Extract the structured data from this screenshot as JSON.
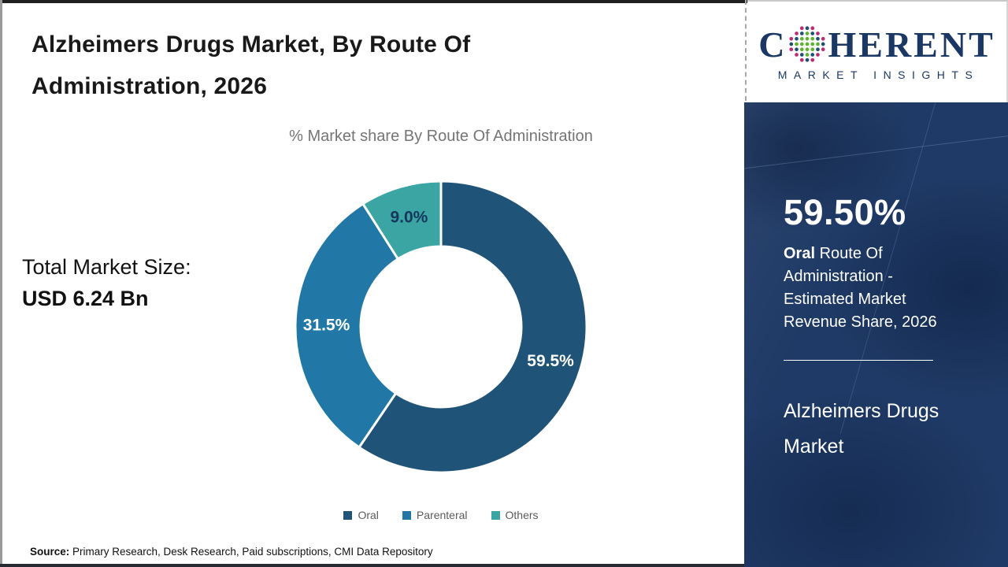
{
  "header": {
    "title_line1": "Alzheimers Drugs Market, By Route Of",
    "title_line2": "Administration, 2026"
  },
  "logo": {
    "brand_first": "C",
    "brand_rest": "HERENT",
    "tagline": "MARKET INSIGHTS",
    "brand_color": "#1b3764",
    "globe_icon": "dotted-globe"
  },
  "chart_data": {
    "type": "pie",
    "subtype": "donut",
    "title": "% Market share By Route Of Administration",
    "categories": [
      "Oral",
      "Parenteral",
      "Others"
    ],
    "values": [
      59.5,
      31.5,
      9.0
    ],
    "unit": "%",
    "colors": [
      "#1f5377",
      "#2178a6",
      "#3ba5a3"
    ],
    "label_colors": [
      "#ffffff",
      "#ffffff",
      "#16365d"
    ],
    "start_angle_deg": 0,
    "direction": "clockwise",
    "inner_radius_ratio": 0.55,
    "legend_position": "bottom",
    "slice_labels": [
      "59.5%",
      "31.5%",
      "9.0%"
    ]
  },
  "total_market": {
    "label": "Total Market Size:",
    "value": "USD 6.24 Bn"
  },
  "sidebar": {
    "stat_value": "59.50%",
    "stat_bold": "Oral",
    "stat_rest": " Route Of Administration - Estimated Market Revenue Share, 2026",
    "market_name": "Alzheimers Drugs Market",
    "bg_color": "#1f3a66"
  },
  "source": {
    "label": "Source:",
    "text": " Primary Research, Desk Research, Paid subscriptions, CMI Data Repository"
  }
}
